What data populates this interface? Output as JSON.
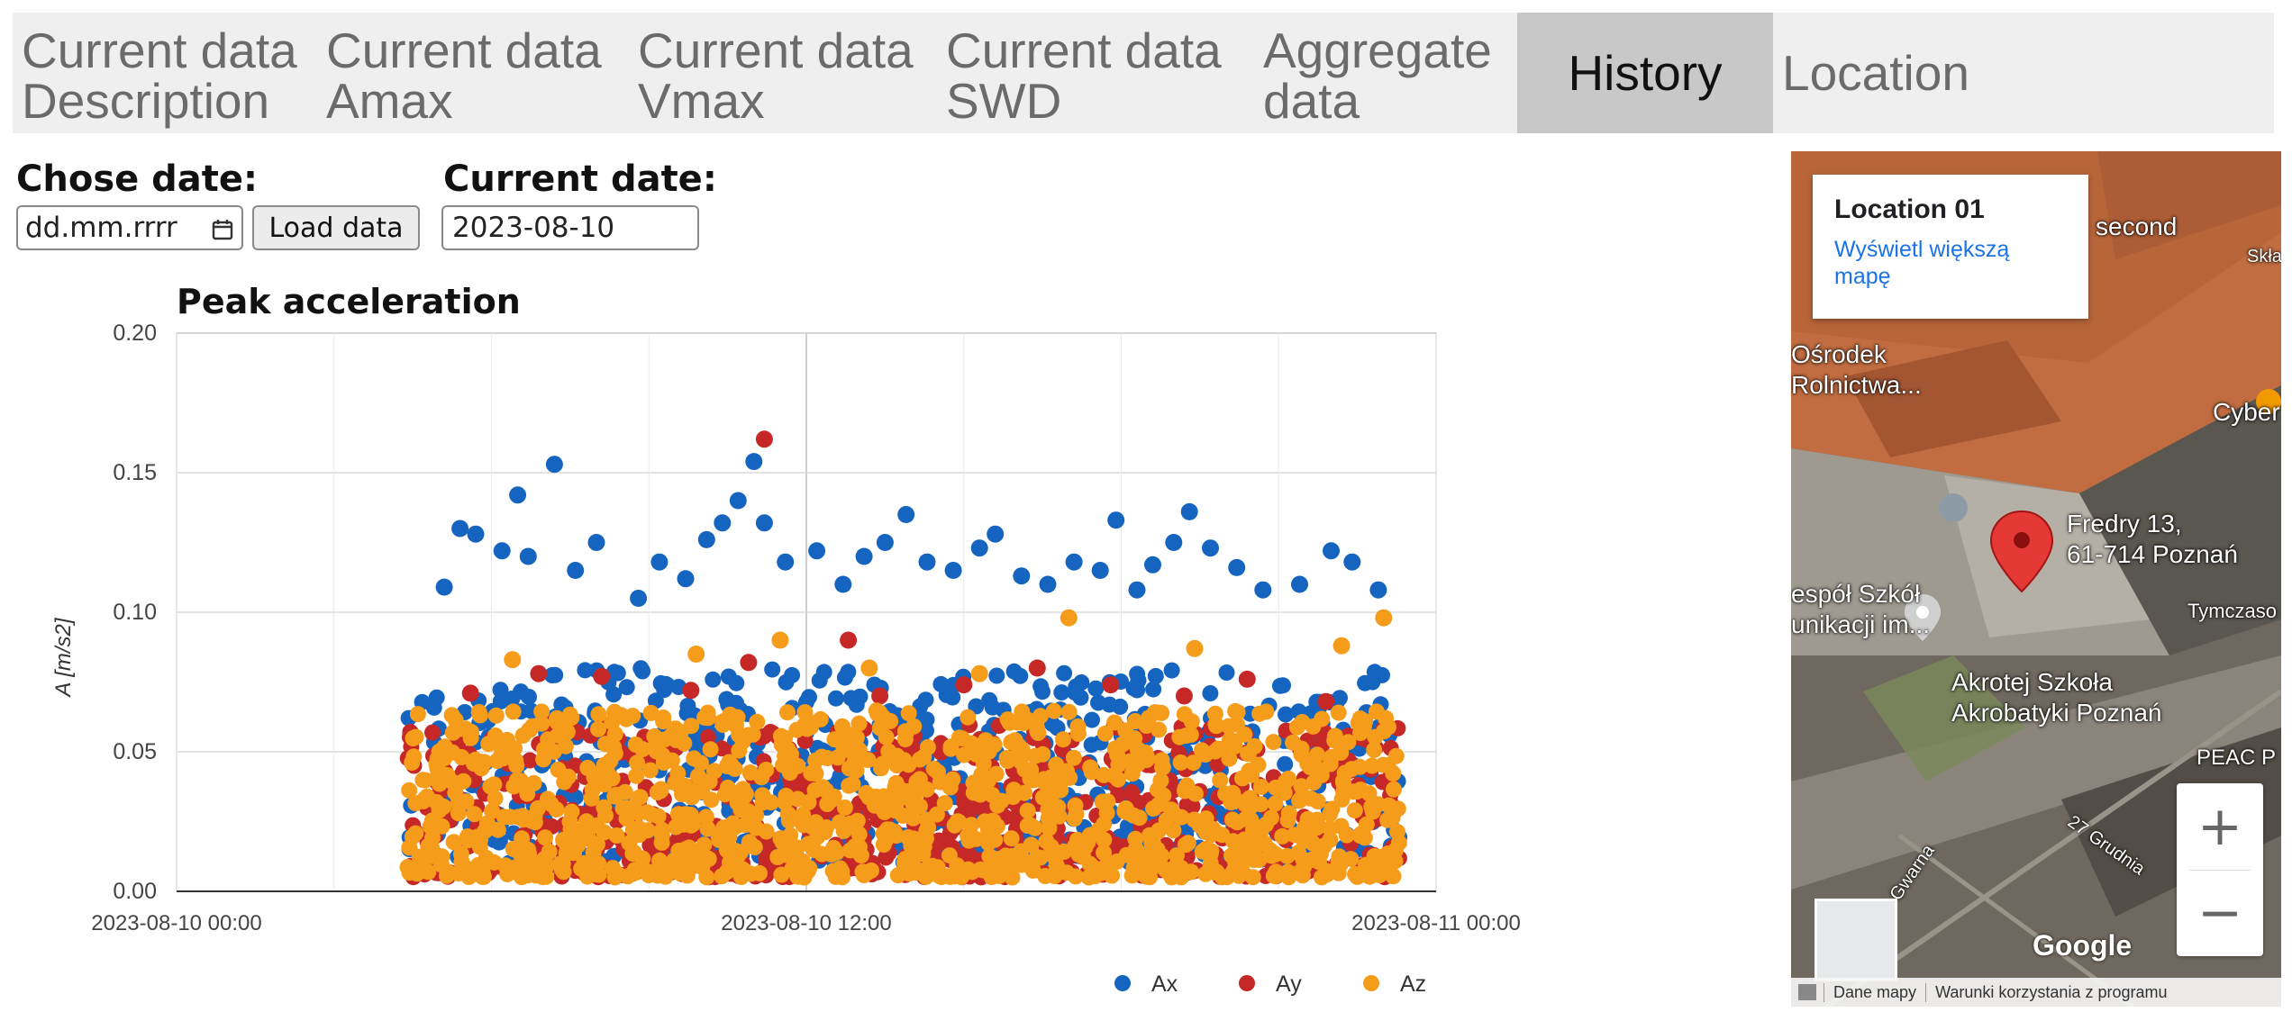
{
  "tabs": [
    {
      "line1": "Current data",
      "line2": "Description",
      "active": false
    },
    {
      "line1": "Current data",
      "line2": "Amax",
      "active": false
    },
    {
      "line1": "Current data",
      "line2": "Vmax",
      "active": false
    },
    {
      "line1": "Current data",
      "line2": "SWD",
      "active": false
    },
    {
      "line1": "Aggregate",
      "line2": "data",
      "active": false
    },
    {
      "line1": "History",
      "line2": "",
      "active": true
    },
    {
      "line1": "Location",
      "line2": "",
      "active": false
    }
  ],
  "controls": {
    "chose_date_label": "Chose date:",
    "date_placeholder": "dd.mm.rrrr",
    "load_button": "Load data",
    "current_date_label": "Current date:",
    "current_date_value": "2023-08-10"
  },
  "chart_data": {
    "type": "scatter",
    "title": "Peak acceleration",
    "ylabel": "A [m/s2]",
    "xlabel": "",
    "x_ticks": [
      "2023-08-10 00:00",
      "2023-08-10 12:00",
      "2023-08-11 00:00"
    ],
    "x_range_hours": [
      0,
      24
    ],
    "y_ticks": [
      "0.00",
      "0.05",
      "0.10",
      "0.15",
      "0.20"
    ],
    "ylim": [
      0,
      0.2
    ],
    "grid": true,
    "legend_position": "bottom-right",
    "data_span_hours": [
      4.4,
      23.3
    ],
    "series": [
      {
        "name": "Ax",
        "color": "#1565c0",
        "typical_range": [
          0.01,
          0.08
        ],
        "max": 0.155,
        "peaks": [
          [
            5.1,
            0.109
          ],
          [
            5.4,
            0.13
          ],
          [
            5.7,
            0.128
          ],
          [
            6.2,
            0.122
          ],
          [
            6.5,
            0.142
          ],
          [
            6.7,
            0.12
          ],
          [
            7.2,
            0.153
          ],
          [
            7.6,
            0.115
          ],
          [
            8.0,
            0.125
          ],
          [
            8.8,
            0.105
          ],
          [
            9.2,
            0.118
          ],
          [
            9.7,
            0.112
          ],
          [
            10.1,
            0.126
          ],
          [
            10.4,
            0.132
          ],
          [
            10.7,
            0.14
          ],
          [
            11.0,
            0.154
          ],
          [
            11.2,
            0.132
          ],
          [
            11.6,
            0.118
          ],
          [
            12.2,
            0.122
          ],
          [
            12.7,
            0.11
          ],
          [
            13.1,
            0.12
          ],
          [
            13.5,
            0.125
          ],
          [
            13.9,
            0.135
          ],
          [
            14.3,
            0.118
          ],
          [
            14.8,
            0.115
          ],
          [
            15.3,
            0.123
          ],
          [
            15.6,
            0.128
          ],
          [
            16.1,
            0.113
          ],
          [
            16.6,
            0.11
          ],
          [
            17.1,
            0.118
          ],
          [
            17.6,
            0.115
          ],
          [
            17.9,
            0.133
          ],
          [
            18.3,
            0.108
          ],
          [
            18.6,
            0.117
          ],
          [
            19.0,
            0.125
          ],
          [
            19.3,
            0.136
          ],
          [
            19.7,
            0.123
          ],
          [
            20.2,
            0.116
          ],
          [
            20.7,
            0.108
          ],
          [
            21.4,
            0.11
          ],
          [
            22.0,
            0.122
          ],
          [
            22.4,
            0.118
          ],
          [
            22.9,
            0.108
          ]
        ]
      },
      {
        "name": "Ay",
        "color": "#c62828",
        "typical_range": [
          0.005,
          0.06
        ],
        "max": 0.162,
        "peaks": [
          [
            5.6,
            0.071
          ],
          [
            6.9,
            0.078
          ],
          [
            8.1,
            0.077
          ],
          [
            9.8,
            0.072
          ],
          [
            10.9,
            0.082
          ],
          [
            11.2,
            0.162
          ],
          [
            12.8,
            0.09
          ],
          [
            13.4,
            0.07
          ],
          [
            15.0,
            0.074
          ],
          [
            16.4,
            0.08
          ],
          [
            17.8,
            0.074
          ],
          [
            19.2,
            0.07
          ],
          [
            20.4,
            0.076
          ],
          [
            21.9,
            0.068
          ],
          [
            23.0,
            0.058
          ]
        ]
      },
      {
        "name": "Az",
        "color": "#f59c1a",
        "typical_range": [
          0.005,
          0.065
        ],
        "max": 0.1,
        "peaks": [
          [
            6.4,
            0.083
          ],
          [
            9.9,
            0.085
          ],
          [
            11.5,
            0.09
          ],
          [
            13.2,
            0.08
          ],
          [
            15.3,
            0.078
          ],
          [
            17.0,
            0.098
          ],
          [
            19.4,
            0.087
          ],
          [
            22.2,
            0.088
          ],
          [
            23.0,
            0.098
          ]
        ]
      }
    ]
  },
  "map": {
    "card_title": "Location 01",
    "card_link": "Wyświetl większą mapę",
    "labels": [
      "second",
      "Skła",
      "Ośrodek",
      "Rolnictwa...",
      "Cyber",
      "Fredry 13,",
      "61-714 Poznań",
      "espół Szkół",
      "unikacji im...",
      "Tymczaso",
      "Akrotej Szkoła",
      "Akrobatyki Poznań",
      "PEAC P",
      "Gwarna",
      "27 Grudnia"
    ],
    "zoom_in": "+",
    "zoom_out": "−",
    "logo": "Google",
    "attribution": [
      "Dane mapy",
      "Warunki korzystania z programu"
    ]
  }
}
